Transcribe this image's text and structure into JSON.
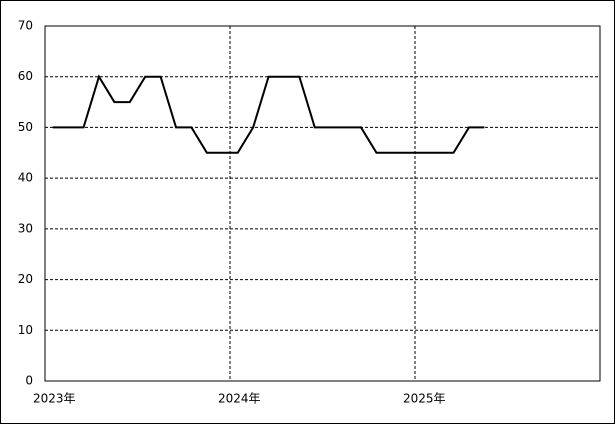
{
  "chart_data": {
    "type": "line",
    "x": [
      2023.0417,
      2023.125,
      2023.2083,
      2023.2917,
      2023.375,
      2023.4583,
      2023.5417,
      2023.625,
      2023.7083,
      2023.7917,
      2023.875,
      2023.9583,
      2024.0417,
      2024.125,
      2024.2083,
      2024.2917,
      2024.375,
      2024.4583,
      2024.5417,
      2024.625,
      2024.7083,
      2024.7917,
      2024.875,
      2024.9583,
      2025.0417,
      2025.125,
      2025.2083,
      2025.2917,
      2025.375
    ],
    "series": [
      {
        "color": "#000000",
        "values": [
          50,
          50,
          50,
          60,
          55,
          55,
          60,
          60,
          50,
          50,
          45,
          45,
          45,
          50,
          60,
          60,
          60,
          50,
          50,
          50,
          50,
          45,
          45,
          45,
          45,
          45,
          45,
          50,
          50
        ]
      }
    ],
    "xlim": [
      2023,
      2026
    ],
    "xticks": [
      {
        "value": 2023,
        "label": "2023年"
      },
      {
        "value": 2024,
        "label": "2024年"
      },
      {
        "value": 2025,
        "label": "2025年"
      }
    ],
    "ylim": [
      0,
      70
    ],
    "yticks": [
      0,
      10,
      20,
      30,
      40,
      50,
      60,
      70
    ],
    "grid": true
  }
}
